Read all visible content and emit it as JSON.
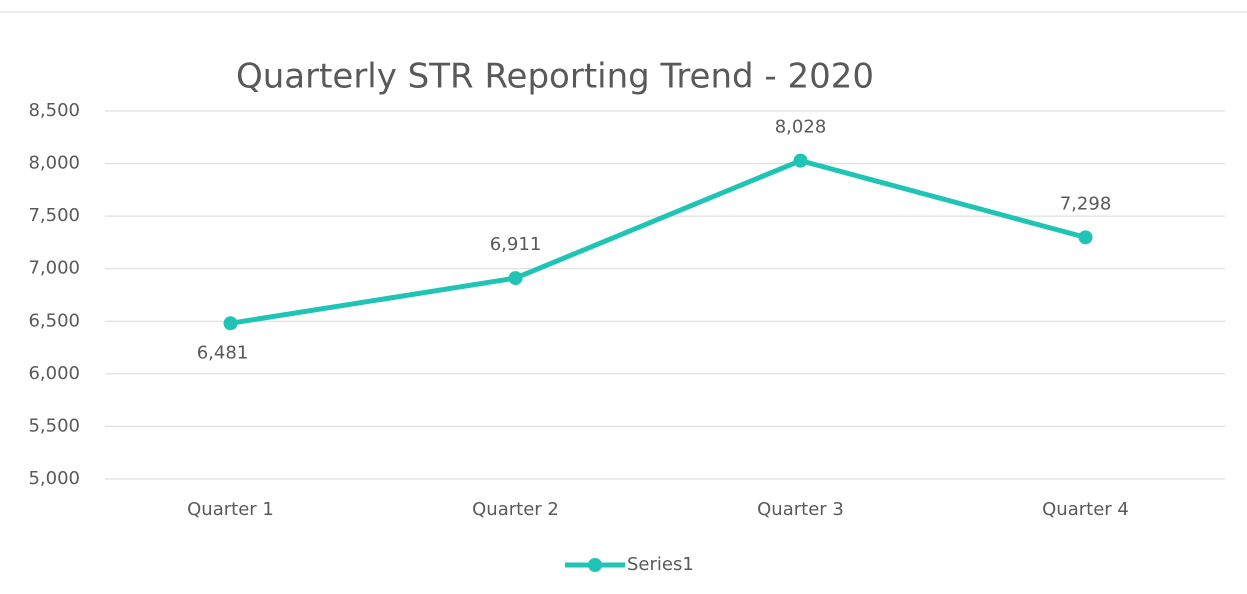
{
  "chart_data": {
    "type": "line",
    "title": "Quarterly STR Reporting Trend - 2020",
    "categories": [
      "Quarter 1",
      "Quarter 2",
      "Quarter 3",
      "Quarter 4"
    ],
    "series": [
      {
        "name": "Series1",
        "color": "#20c4b4",
        "values": [
          6481,
          6911,
          8028,
          7298
        ],
        "value_labels": [
          "6,481",
          "6,911",
          "8,028",
          "7,298"
        ]
      }
    ],
    "ylim": [
      5000,
      8500
    ],
    "yticks": [
      {
        "value": 5000,
        "label": "5,000"
      },
      {
        "value": 5500,
        "label": "5,500"
      },
      {
        "value": 6000,
        "label": "6,000"
      },
      {
        "value": 6500,
        "label": "6,500"
      },
      {
        "value": 7000,
        "label": "7,000"
      },
      {
        "value": 7500,
        "label": "7,500"
      },
      {
        "value": 8000,
        "label": "8,000"
      },
      {
        "value": 8500,
        "label": "8,500"
      }
    ],
    "grid": true,
    "legend": "bottom"
  }
}
